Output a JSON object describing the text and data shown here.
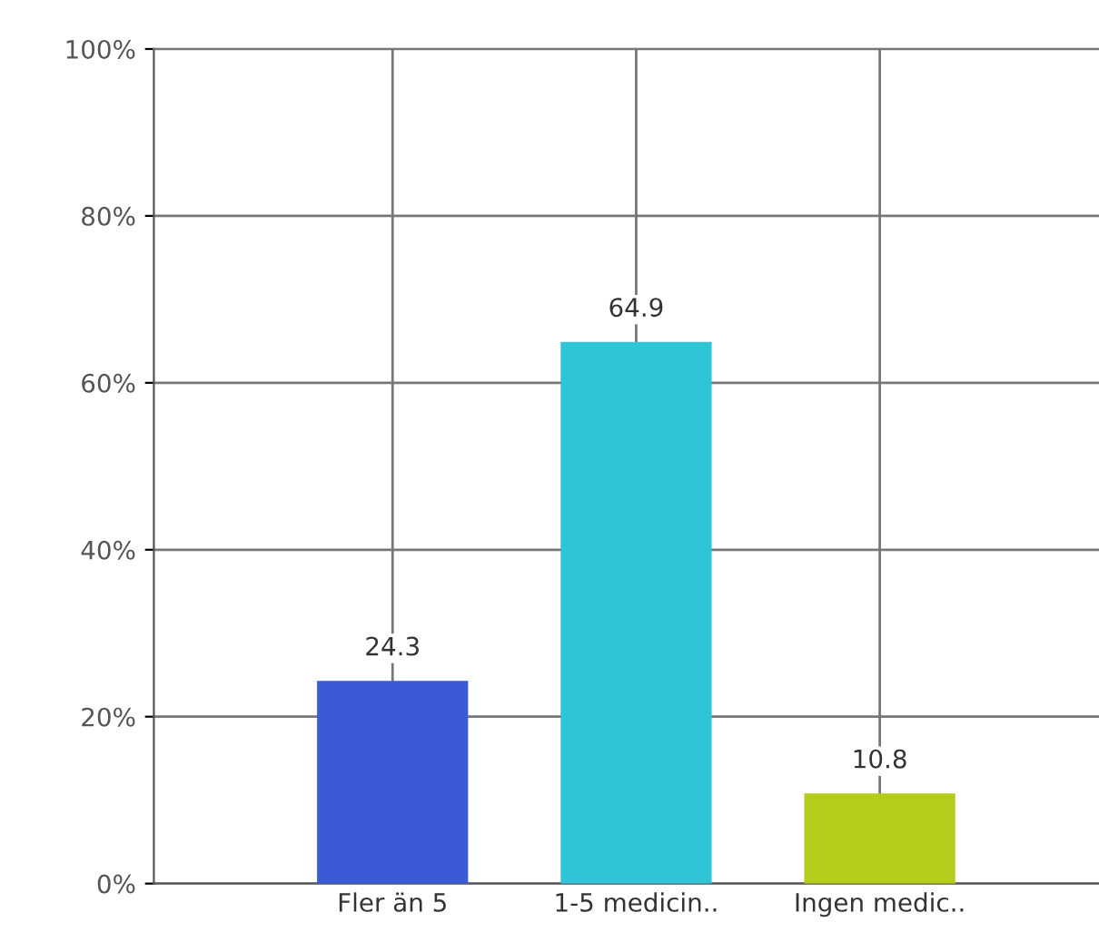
{
  "chart_data": {
    "type": "bar",
    "categories": [
      "Fler än 5",
      "1-5 medicin..",
      "Ingen medic.."
    ],
    "values": [
      24.3,
      64.9,
      10.8
    ],
    "colors": [
      "#3a5ad8",
      "#30c4d8",
      "#b4cc1c"
    ],
    "ylim": [
      0,
      100
    ],
    "yticks": [
      {
        "value": 0,
        "label": "0%"
      },
      {
        "value": 20,
        "label": "20%"
      },
      {
        "value": 40,
        "label": "40%"
      },
      {
        "value": 60,
        "label": "60%"
      },
      {
        "value": 80,
        "label": "80%"
      },
      {
        "value": 100,
        "label": "100%"
      }
    ],
    "data_labels": true,
    "grid": true,
    "legend": false
  }
}
